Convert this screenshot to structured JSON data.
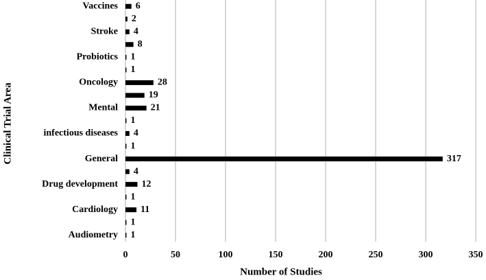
{
  "chart_data": {
    "type": "bar",
    "orientation": "horizontal",
    "x_label": "Number of Studies",
    "y_label": "Clinical Trial Area",
    "categories": [
      "Vaccines",
      null,
      "Stroke",
      null,
      "Probiotics",
      null,
      "Oncology",
      null,
      "Mental",
      null,
      "infectious diseases",
      null,
      "General",
      null,
      "Drug development",
      null,
      "Cardiology",
      null,
      "Audiometry"
    ],
    "values": [
      6,
      2,
      4,
      8,
      1,
      1,
      28,
      19,
      21,
      1,
      4,
      1,
      317,
      4,
      12,
      1,
      11,
      1,
      1
    ],
    "color": "#000000",
    "xlim": [
      0,
      350
    ],
    "xticks": [
      0,
      50,
      100,
      150,
      200,
      250,
      300,
      350
    ],
    "grid": true
  }
}
